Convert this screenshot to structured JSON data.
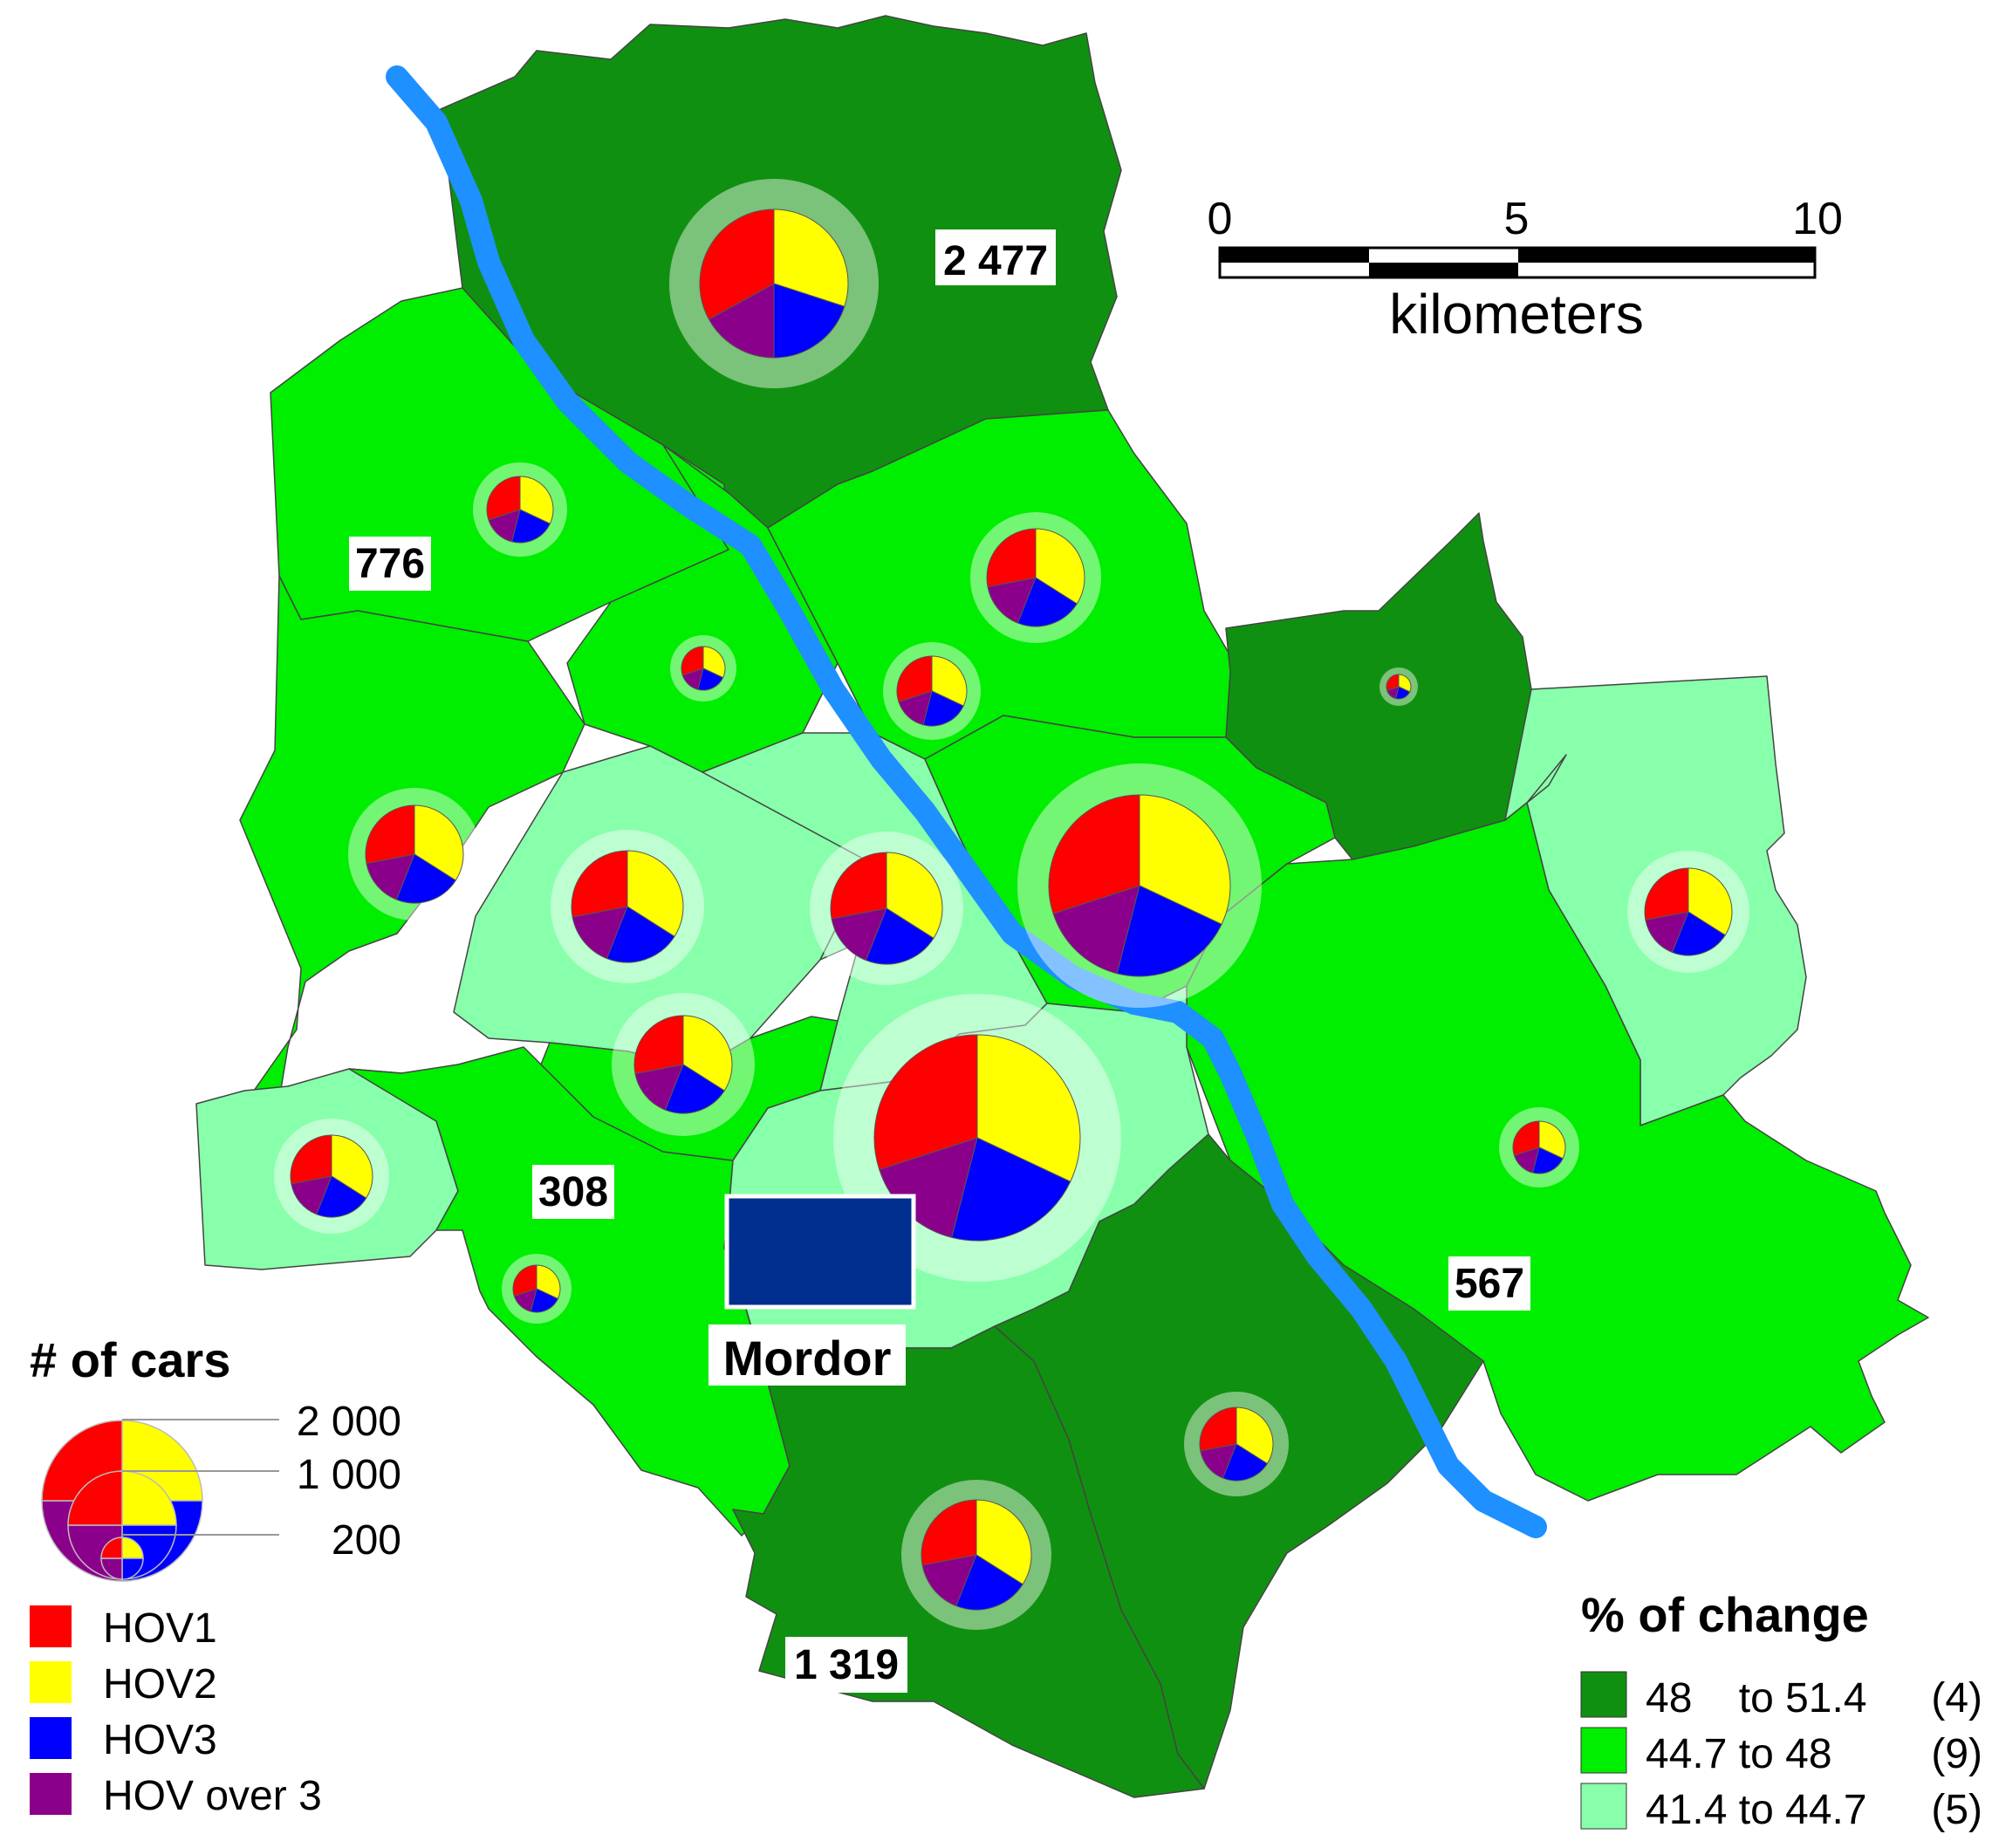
{
  "scale_bar": {
    "ticks": [
      "0",
      "5",
      "10"
    ],
    "unit": "kilometers"
  },
  "marker": {
    "label": "Mordor"
  },
  "district_labels": [
    "2 477",
    "776",
    "308",
    "567",
    "1 319"
  ],
  "size_legend": {
    "title": "# of cars",
    "values": [
      "2 000",
      "1 000",
      "200"
    ]
  },
  "categories": [
    {
      "label": "HOV1",
      "color": "#ff0000"
    },
    {
      "label": "HOV2",
      "color": "#ffff00"
    },
    {
      "label": "HOV3",
      "color": "#0000ff"
    },
    {
      "label": "HOV over 3",
      "color": "#8b008b"
    }
  ],
  "change_legend": {
    "title": "% of change",
    "classes": [
      {
        "range": "48    to 51.4",
        "count": "(4)",
        "color": "#109010"
      },
      {
        "range": "44.7 to 48",
        "count": "(9)",
        "color": "#00ee00"
      },
      {
        "range": "41.4 to 44.7",
        "count": "(5)",
        "color": "#88ffaa"
      }
    ]
  },
  "river_color": "#1e90ff",
  "marker_color": "#002f8f"
}
